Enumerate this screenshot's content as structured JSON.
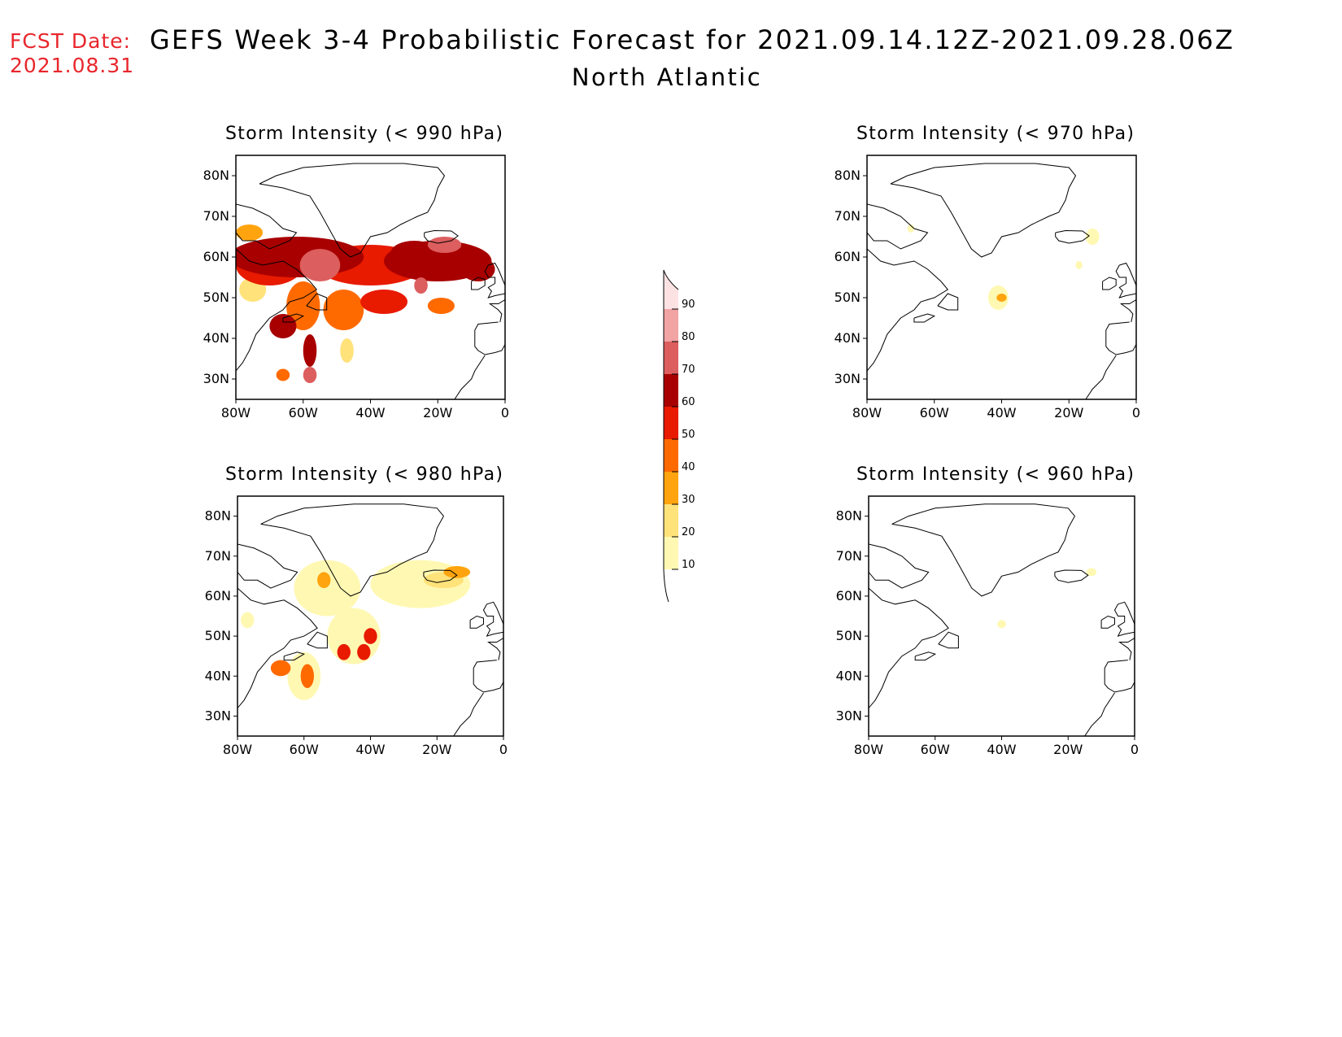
{
  "header": {
    "fcst_label": "FCST Date:",
    "fcst_date": "2021.08.31",
    "title": "GEFS Week 3-4 Probabilistic Forecast for 2021.09.14.12Z-2021.09.28.06Z",
    "subtitle": "North Atlantic"
  },
  "axes": {
    "lat_labels": [
      "80N",
      "70N",
      "60N",
      "50N",
      "40N",
      "30N"
    ],
    "lat_values": [
      80,
      70,
      60,
      50,
      40,
      30
    ],
    "lon_labels": [
      "80W",
      "60W",
      "40W",
      "20W",
      "0"
    ],
    "lon_values": [
      -80,
      -60,
      -40,
      -20,
      0
    ],
    "lon_range": [
      -80,
      0
    ],
    "lat_range": [
      25,
      85
    ]
  },
  "colorbar": {
    "levels": [
      "10",
      "20",
      "30",
      "40",
      "50",
      "60",
      "70",
      "80",
      "90"
    ],
    "colors": [
      "#fff8b2",
      "#ffe27a",
      "#ffa40f",
      "#ff6a00",
      "#e81a00",
      "#a80000",
      "#dc5e5e",
      "#f2a3a3",
      "#fde2e4"
    ]
  },
  "panels": [
    {
      "title": "Storm Intensity (< 990 hPa)",
      "blobs": [
        {
          "lon": -62,
          "lat": 60,
          "rx": 20,
          "ry": 5,
          "level": 6
        },
        {
          "lon": -40,
          "lat": 58,
          "rx": 16,
          "ry": 5,
          "level": 5
        },
        {
          "lon": -20,
          "lat": 59,
          "rx": 16,
          "ry": 5,
          "level": 6
        },
        {
          "lon": -70,
          "lat": 58,
          "rx": 10,
          "ry": 5,
          "level": 5
        },
        {
          "lon": -55,
          "lat": 58,
          "rx": 6,
          "ry": 4,
          "level": 7
        },
        {
          "lon": -27,
          "lat": 61,
          "rx": 7,
          "ry": 3,
          "level": 6
        },
        {
          "lon": -18,
          "lat": 63,
          "rx": 5,
          "ry": 2,
          "level": 7
        },
        {
          "lon": -8,
          "lat": 57,
          "rx": 5,
          "ry": 3,
          "level": 6
        },
        {
          "lon": -76,
          "lat": 66,
          "rx": 4,
          "ry": 2,
          "level": 3
        },
        {
          "lon": -48,
          "lat": 47,
          "rx": 6,
          "ry": 5,
          "level": 4
        },
        {
          "lon": -36,
          "lat": 49,
          "rx": 7,
          "ry": 3,
          "level": 5
        },
        {
          "lon": -60,
          "lat": 48,
          "rx": 5,
          "ry": 6,
          "level": 4
        },
        {
          "lon": -66,
          "lat": 43,
          "rx": 4,
          "ry": 3,
          "level": 6
        },
        {
          "lon": -58,
          "lat": 37,
          "rx": 2,
          "ry": 4,
          "level": 6
        },
        {
          "lon": -58,
          "lat": 31,
          "rx": 2,
          "ry": 2,
          "level": 7
        },
        {
          "lon": -66,
          "lat": 31,
          "rx": 2,
          "ry": 1.5,
          "level": 4
        },
        {
          "lon": -47,
          "lat": 37,
          "rx": 2,
          "ry": 3,
          "level": 2
        },
        {
          "lon": -19,
          "lat": 48,
          "rx": 4,
          "ry": 2,
          "level": 4
        },
        {
          "lon": -25,
          "lat": 53,
          "rx": 2,
          "ry": 2,
          "level": 7
        },
        {
          "lon": -75,
          "lat": 52,
          "rx": 4,
          "ry": 3,
          "level": 2
        }
      ]
    },
    {
      "title": "Storm Intensity (< 970 hPa)",
      "blobs": [
        {
          "lon": -41,
          "lat": 50,
          "rx": 3,
          "ry": 3,
          "level": 1
        },
        {
          "lon": -40,
          "lat": 50,
          "rx": 1.5,
          "ry": 1,
          "level": 3
        },
        {
          "lon": -13,
          "lat": 65,
          "rx": 2,
          "ry": 2,
          "level": 1
        },
        {
          "lon": -67,
          "lat": 67,
          "rx": 1,
          "ry": 1,
          "level": 1
        },
        {
          "lon": -17,
          "lat": 58,
          "rx": 1,
          "ry": 1,
          "level": 1
        }
      ]
    },
    {
      "title": "Storm Intensity (< 980 hPa)",
      "blobs": [
        {
          "lon": -53,
          "lat": 62,
          "rx": 10,
          "ry": 7,
          "level": 1
        },
        {
          "lon": -25,
          "lat": 63,
          "rx": 15,
          "ry": 6,
          "level": 1
        },
        {
          "lon": -18,
          "lat": 64,
          "rx": 6,
          "ry": 2,
          "level": 2
        },
        {
          "lon": -14,
          "lat": 66,
          "rx": 4,
          "ry": 1.5,
          "level": 3
        },
        {
          "lon": -45,
          "lat": 50,
          "rx": 8,
          "ry": 7,
          "level": 1
        },
        {
          "lon": -60,
          "lat": 40,
          "rx": 5,
          "ry": 6,
          "level": 1
        },
        {
          "lon": -59,
          "lat": 40,
          "rx": 2,
          "ry": 3,
          "level": 4
        },
        {
          "lon": -48,
          "lat": 46,
          "rx": 2,
          "ry": 2,
          "level": 5
        },
        {
          "lon": -42,
          "lat": 46,
          "rx": 2,
          "ry": 2,
          "level": 5
        },
        {
          "lon": -40,
          "lat": 50,
          "rx": 2,
          "ry": 2,
          "level": 5
        },
        {
          "lon": -67,
          "lat": 42,
          "rx": 3,
          "ry": 2,
          "level": 4
        },
        {
          "lon": -54,
          "lat": 64,
          "rx": 2,
          "ry": 2,
          "level": 3
        },
        {
          "lon": -77,
          "lat": 54,
          "rx": 2,
          "ry": 2,
          "level": 1
        }
      ]
    },
    {
      "title": "Storm Intensity (< 960 hPa)",
      "blobs": [
        {
          "lon": -40,
          "lat": 53,
          "rx": 1.3,
          "ry": 1,
          "level": 1
        },
        {
          "lon": -13,
          "lat": 66,
          "rx": 1.5,
          "ry": 1,
          "level": 1
        }
      ]
    }
  ]
}
